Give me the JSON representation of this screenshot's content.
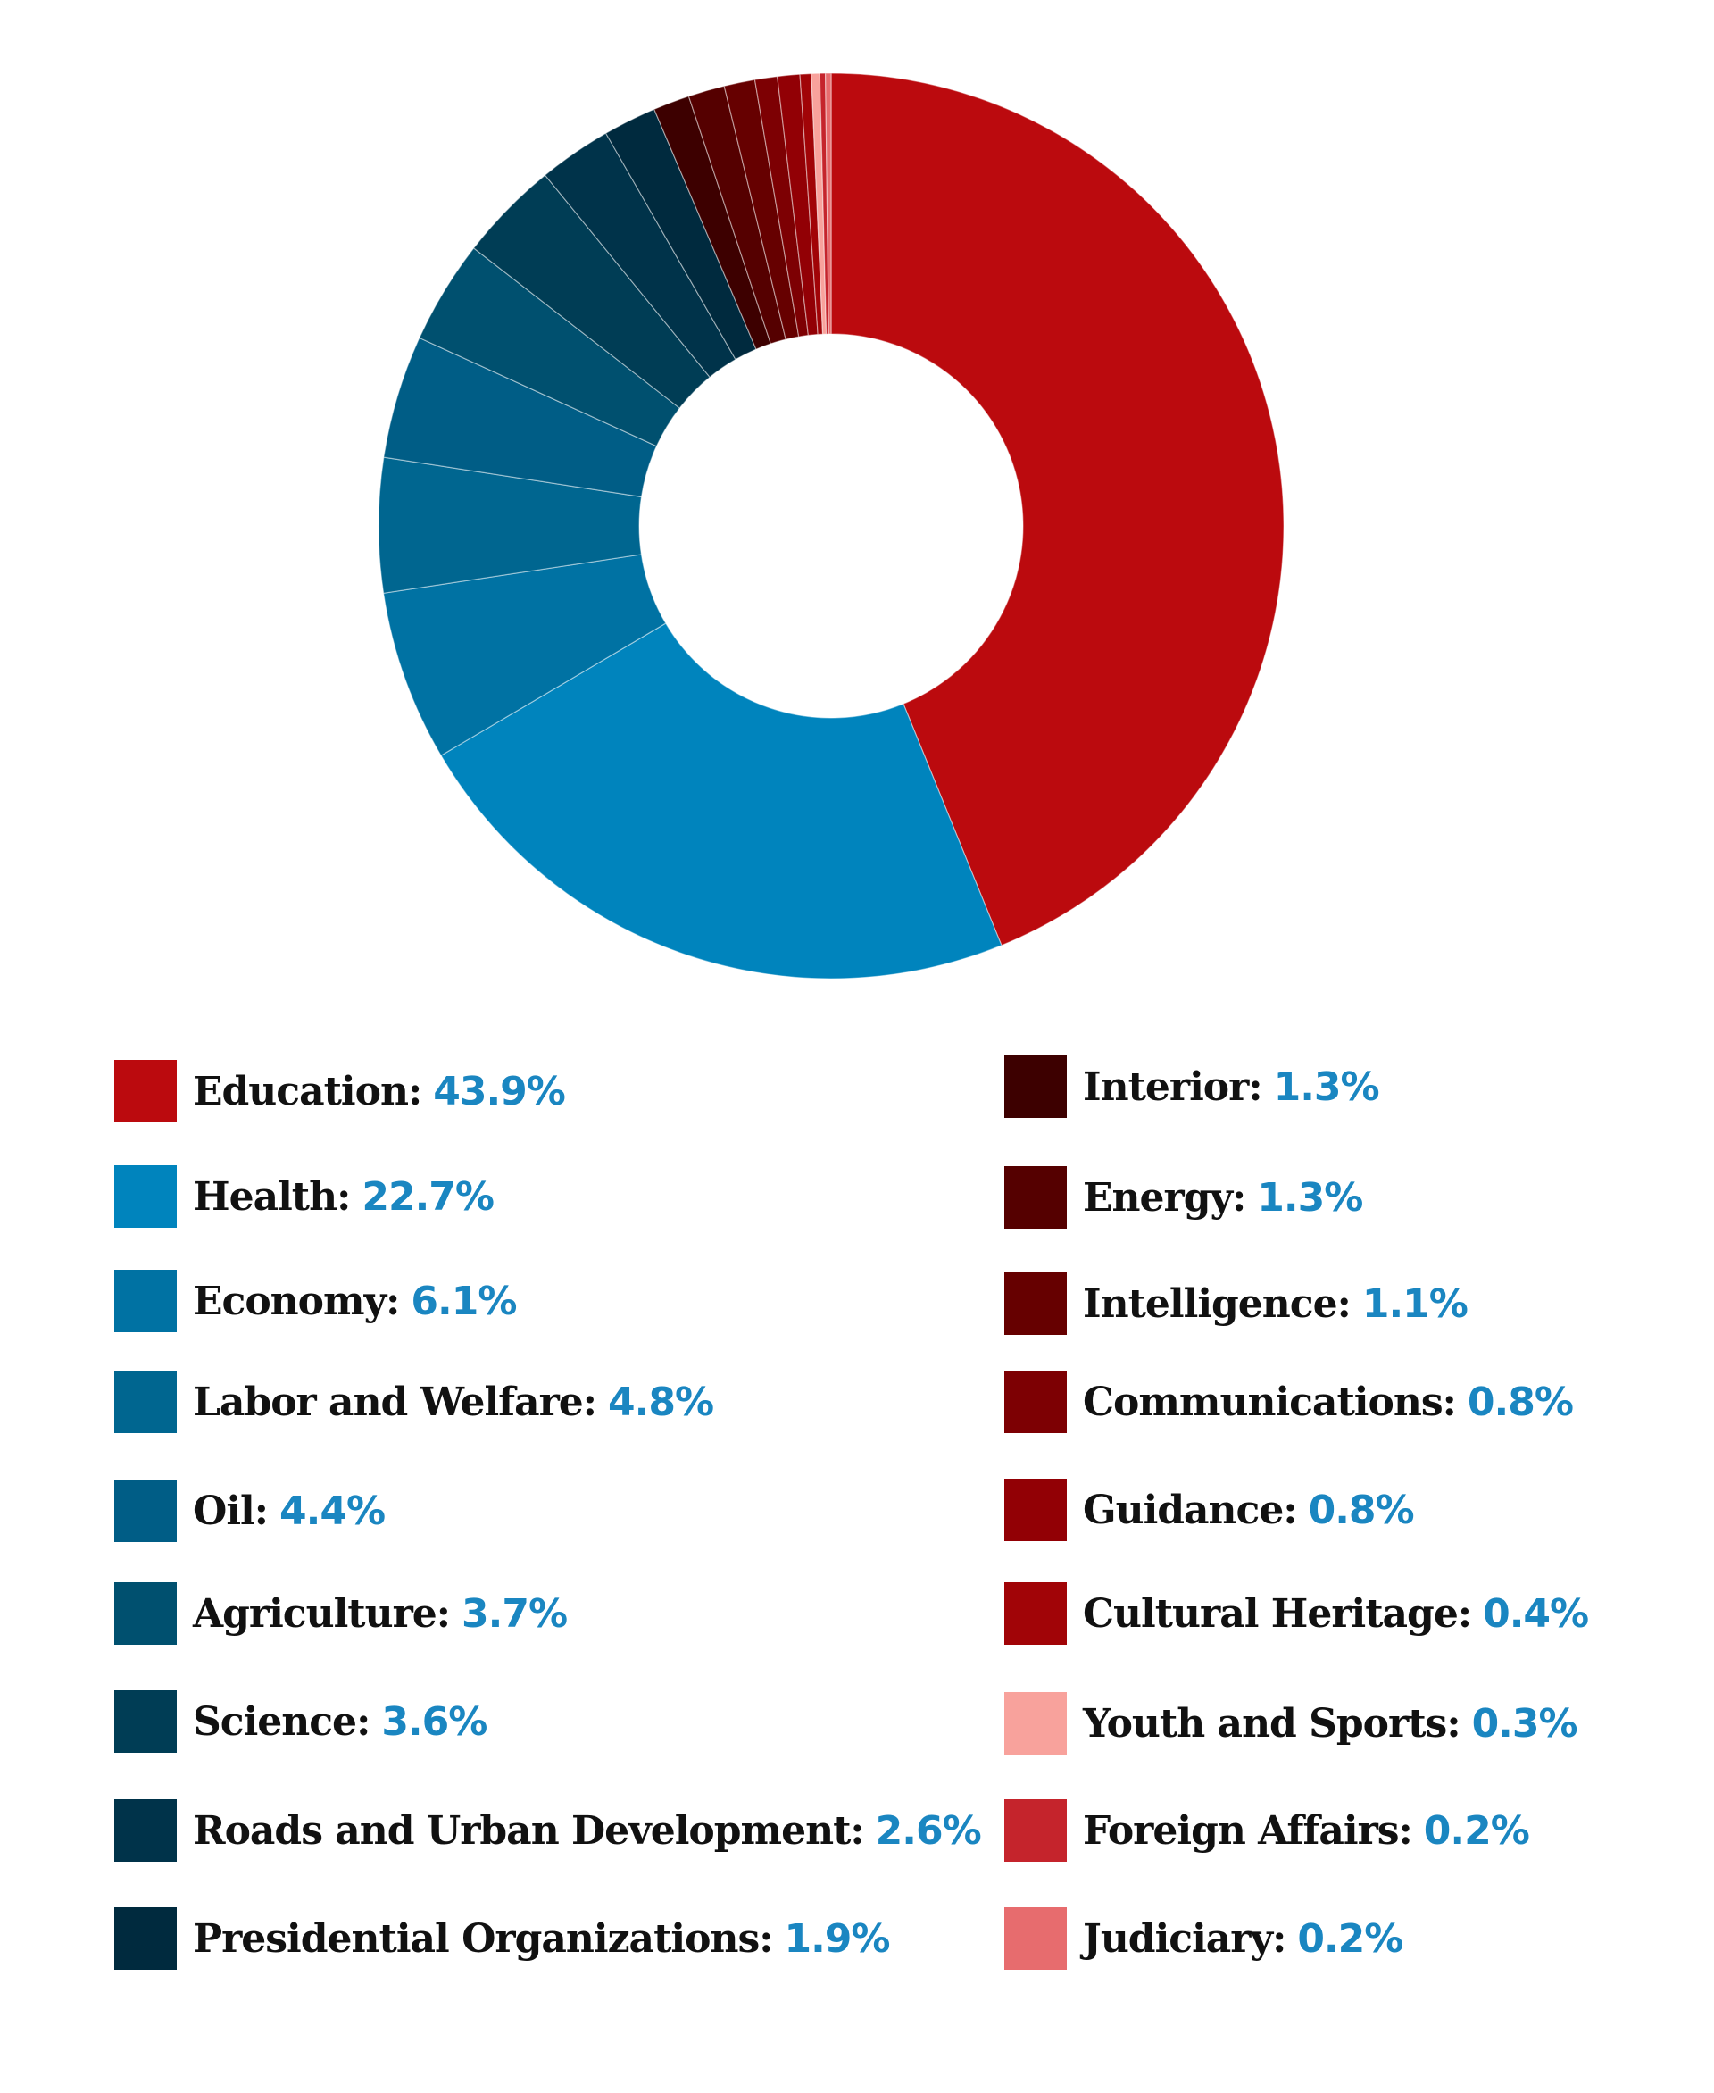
{
  "chart_data": {
    "type": "pie",
    "donut": true,
    "legend_placement": "bottom",
    "value_color": "#1a86c1",
    "slices": [
      {
        "label": "Education",
        "value": 43.9,
        "display": "43.9%",
        "color": "#bb0a0e"
      },
      {
        "label": "Health",
        "value": 22.7,
        "display": "22.7%",
        "color": "#0084bd"
      },
      {
        "label": "Economy",
        "value": 6.1,
        "display": "6.1%",
        "color": "#0072a3"
      },
      {
        "label": "Labor and Welfare",
        "value": 4.8,
        "display": "4.8%",
        "color": "#006690"
      },
      {
        "label": "Oil",
        "value": 4.4,
        "display": "4.4%",
        "color": "#005d86"
      },
      {
        "label": "Agriculture",
        "value": 3.7,
        "display": "3.7%",
        "color": "#00506f"
      },
      {
        "label": "Science",
        "value": 3.6,
        "display": "3.6%",
        "color": "#003d55"
      },
      {
        "label": "Roads and Urban Development",
        "value": 2.6,
        "display": "2.6%",
        "color": "#00334a"
      },
      {
        "label": "Presidential Organizations",
        "value": 1.9,
        "display": "1.9%",
        "color": "#002a3e"
      },
      {
        "label": "Interior",
        "value": 1.3,
        "display": "1.3%",
        "color": "#3d0000"
      },
      {
        "label": "Energy",
        "value": 1.3,
        "display": "1.3%",
        "color": "#550000"
      },
      {
        "label": "Intelligence",
        "value": 1.1,
        "display": "1.1%",
        "color": "#660000"
      },
      {
        "label": "Communications",
        "value": 0.8,
        "display": "0.8%",
        "color": "#7d0003"
      },
      {
        "label": "Guidance",
        "value": 0.8,
        "display": "0.8%",
        "color": "#920005"
      },
      {
        "label": "Cultural Heritage",
        "value": 0.4,
        "display": "0.4%",
        "color": "#a10407"
      },
      {
        "label": "Youth and Sports",
        "value": 0.3,
        "display": "0.3%",
        "color": "#f8a29c"
      },
      {
        "label": "Foreign Affairs",
        "value": 0.2,
        "display": "0.2%",
        "color": "#c5242c"
      },
      {
        "label": "Judiciary",
        "value": 0.2,
        "display": "0.2%",
        "color": "#e76c6e"
      }
    ]
  }
}
